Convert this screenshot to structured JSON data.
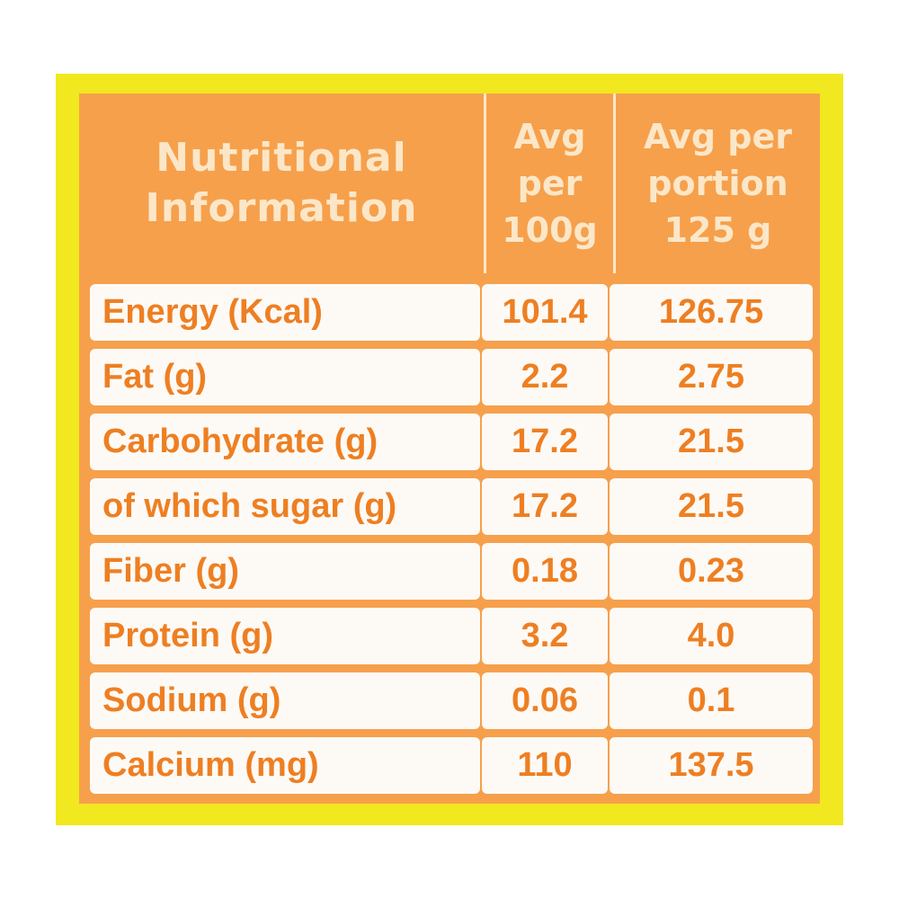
{
  "header": {
    "title_line1": "Nutritional",
    "title_line2": "Information",
    "col1_line1": "Avg",
    "col1_line2": "per",
    "col1_line3": "100g",
    "col2_line1": "Avg per",
    "col2_line2": "portion",
    "col2_line3": "125 g"
  },
  "rows": [
    {
      "name": "Energy (Kcal)",
      "per100": "101.4",
      "perPortion": "126.75"
    },
    {
      "name": "Fat (g)",
      "per100": "2.2",
      "perPortion": "2.75"
    },
    {
      "name": "Carbohydrate (g)",
      "per100": "17.2",
      "perPortion": "21.5"
    },
    {
      "name": "of which sugar (g)",
      "per100": "17.2",
      "perPortion": "21.5"
    },
    {
      "name": "Fiber (g)",
      "per100": "0.18",
      "perPortion": "0.23"
    },
    {
      "name": "Protein (g)",
      "per100": "3.2",
      "perPortion": "4.0"
    },
    {
      "name": "Sodium (g)",
      "per100": "0.06",
      "perPortion": "0.1"
    },
    {
      "name": "Calcium (mg)",
      "per100": "110",
      "perPortion": "137.5"
    }
  ],
  "colors": {
    "frame": "#f2e81f",
    "panel": "#f6a04c",
    "header_text": "#fbe7c8",
    "cell_bg": "#fdfaf6",
    "cell_text": "#ee7f22"
  }
}
